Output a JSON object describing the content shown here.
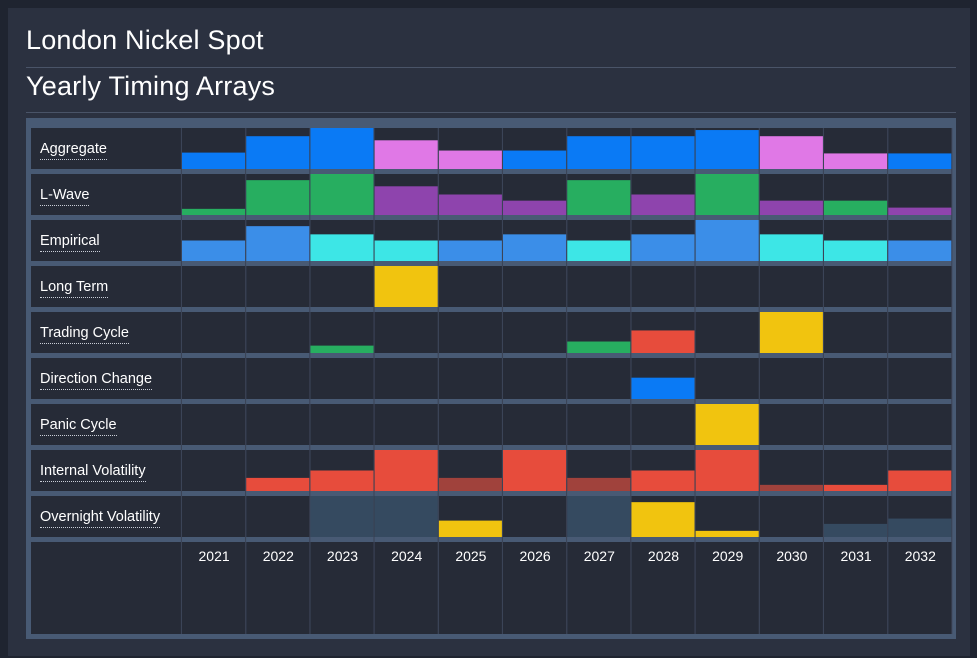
{
  "header": {
    "title": "London Nickel Spot",
    "subtitle": "Yearly Timing Arrays"
  },
  "chart_data": {
    "type": "heatmap",
    "categories": [
      "2021",
      "2022",
      "2023",
      "2024",
      "2025",
      "2026",
      "2027",
      "2028",
      "2029",
      "2030",
      "2031",
      "2032"
    ],
    "series": [
      {
        "name": "Aggregate",
        "values": [
          0.4,
          0.8,
          1.0,
          0.7,
          0.45,
          0.45,
          0.8,
          0.8,
          0.95,
          0.8,
          0.38,
          0.38
        ],
        "colors": [
          "#0a7af5",
          "#0a7af5",
          "#0a7af5",
          "#e078e6",
          "#e078e6",
          "#0a7af5",
          "#0a7af5",
          "#0a7af5",
          "#0a7af5",
          "#e078e6",
          "#e078e6",
          "#0a7af5"
        ]
      },
      {
        "name": "L-Wave",
        "values": [
          0.15,
          0.85,
          1.0,
          0.7,
          0.5,
          0.35,
          0.85,
          0.5,
          1.0,
          0.35,
          0.35,
          0.18
        ],
        "colors": [
          "#27ae60",
          "#27ae60",
          "#27ae60",
          "#8e44ad",
          "#8e44ad",
          "#8e44ad",
          "#27ae60",
          "#8e44ad",
          "#27ae60",
          "#8e44ad",
          "#27ae60",
          "#8e44ad"
        ]
      },
      {
        "name": "Empirical",
        "values": [
          0.5,
          0.85,
          0.65,
          0.5,
          0.5,
          0.65,
          0.5,
          0.65,
          1.0,
          0.65,
          0.5,
          0.5
        ],
        "colors": [
          "#3b8ee8",
          "#3b8ee8",
          "#3de6e6",
          "#3de6e6",
          "#3b8ee8",
          "#3b8ee8",
          "#3de6e6",
          "#3b8ee8",
          "#3b8ee8",
          "#3de6e6",
          "#3de6e6",
          "#3b8ee8"
        ]
      },
      {
        "name": "Long Term",
        "values": [
          0,
          0,
          0,
          1.0,
          0,
          0,
          0,
          0,
          0,
          0,
          0,
          0
        ],
        "colors": [
          "#f1c40f",
          "#f1c40f",
          "#f1c40f",
          "#f1c40f",
          "#f1c40f",
          "#f1c40f",
          "#f1c40f",
          "#f1c40f",
          "#f1c40f",
          "#f1c40f",
          "#f1c40f",
          "#f1c40f"
        ]
      },
      {
        "name": "Trading Cycle",
        "values": [
          0,
          0,
          0.18,
          0,
          0,
          0,
          0.28,
          0.55,
          0,
          1.0,
          0,
          0
        ],
        "colors": [
          "#27ae60",
          "#27ae60",
          "#27ae60",
          "#27ae60",
          "#27ae60",
          "#27ae60",
          "#27ae60",
          "#e74c3c",
          "#27ae60",
          "#f1c40f",
          "#27ae60",
          "#27ae60"
        ]
      },
      {
        "name": "Direction Change",
        "values": [
          0,
          0,
          0,
          0,
          0,
          0,
          0,
          0.52,
          0,
          0,
          0,
          0
        ],
        "colors": [
          "#0a7af5",
          "#0a7af5",
          "#0a7af5",
          "#0a7af5",
          "#0a7af5",
          "#0a7af5",
          "#0a7af5",
          "#0a7af5",
          "#0a7af5",
          "#0a7af5",
          "#0a7af5",
          "#0a7af5"
        ]
      },
      {
        "name": "Panic Cycle",
        "values": [
          0,
          0,
          0,
          0,
          0,
          0,
          0,
          0,
          1.0,
          0,
          0,
          0
        ],
        "colors": [
          "#f1c40f",
          "#f1c40f",
          "#f1c40f",
          "#f1c40f",
          "#f1c40f",
          "#f1c40f",
          "#f1c40f",
          "#f1c40f",
          "#f1c40f",
          "#f1c40f",
          "#f1c40f",
          "#f1c40f"
        ]
      },
      {
        "name": "Internal Volatility",
        "values": [
          0,
          0.32,
          0.5,
          1.0,
          0.32,
          1.0,
          0.32,
          0.5,
          1.0,
          0.15,
          0.15,
          0.5
        ],
        "colors": [
          "#e74c3c",
          "#e74c3c",
          "#e74c3c",
          "#e74c3c",
          "#a0423c",
          "#e74c3c",
          "#a0423c",
          "#e74c3c",
          "#e74c3c",
          "#a0423c",
          "#e74c3c",
          "#e74c3c"
        ]
      },
      {
        "name": "Overnight Volatility",
        "values": [
          0,
          0,
          1.0,
          1.0,
          0.4,
          0,
          1.0,
          0.85,
          0.15,
          0,
          0.32,
          0.45
        ],
        "colors": [
          "#354a60",
          "#354a60",
          "#354a60",
          "#354a60",
          "#f1c40f",
          "#354a60",
          "#354a60",
          "#f1c40f",
          "#f1c40f",
          "#354a60",
          "#354a60",
          "#354a60"
        ]
      }
    ],
    "grid": true,
    "legend": "none"
  }
}
